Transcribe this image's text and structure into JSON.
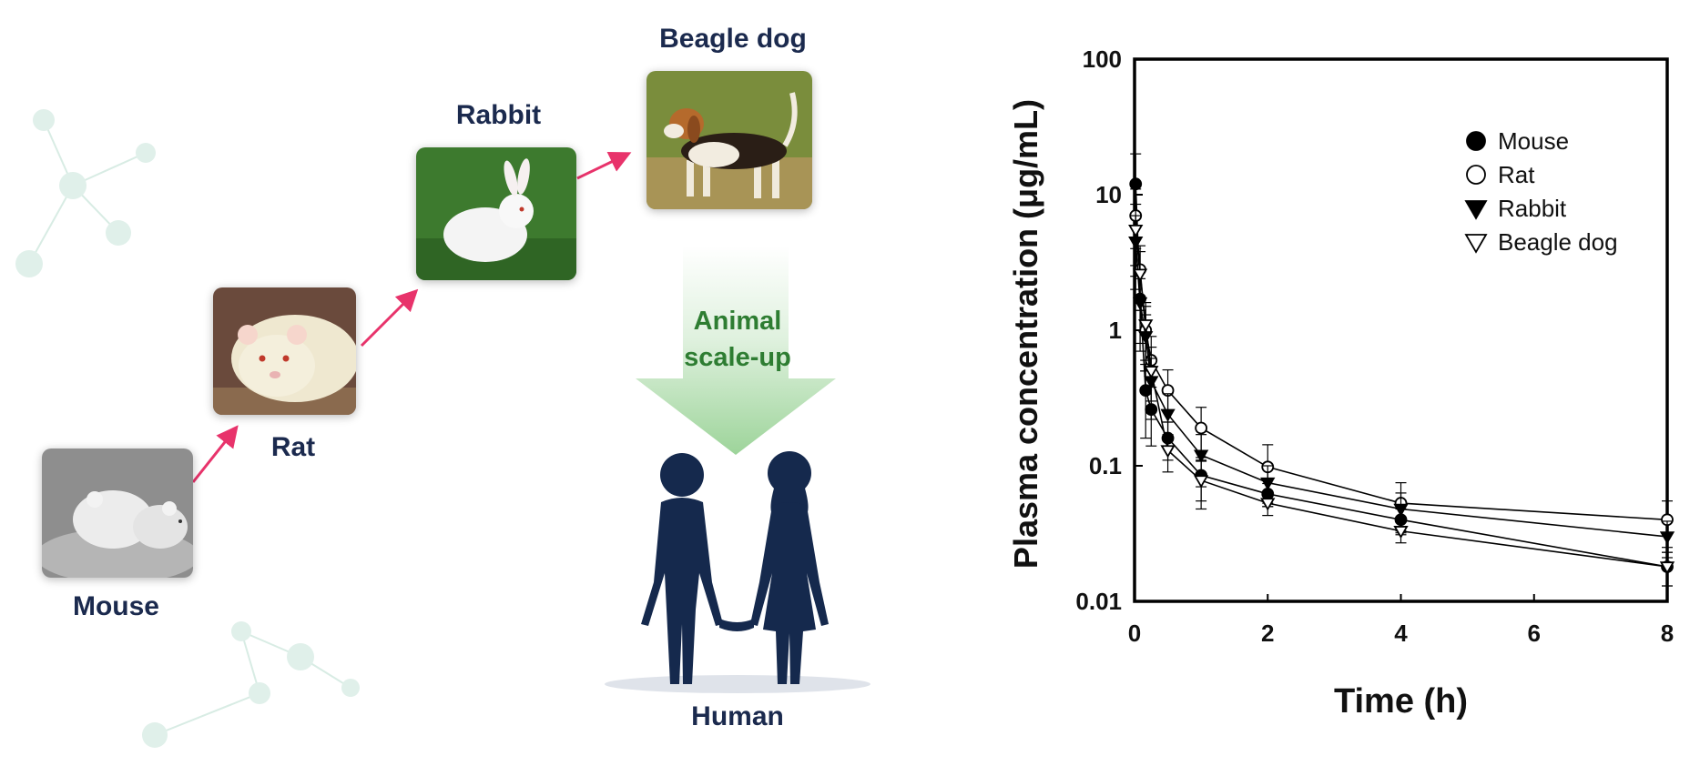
{
  "diagram": {
    "labels": {
      "mouse": "Mouse",
      "rat": "Rat",
      "rabbit": "Rabbit",
      "beagle": "Beagle dog",
      "scale_up_line1": "Animal",
      "scale_up_line2": "scale-up",
      "human": "Human"
    },
    "colors": {
      "label_navy": "#1b2a4e",
      "arrow_pink": "#e8336b",
      "scale_green": "#2e7d32",
      "human_navy": "#15294d"
    }
  },
  "chart_data": {
    "type": "line",
    "title": "",
    "xlabel": "Time (h)",
    "ylabel": "Plasma concentration (μg/mL)",
    "xlim": [
      0,
      8
    ],
    "ylim": [
      0.01,
      100
    ],
    "yscale": "log",
    "xticks": [
      0,
      2,
      4,
      6,
      8
    ],
    "yticks": [
      0.01,
      0.1,
      1,
      10,
      100
    ],
    "ytick_labels": [
      "0.01",
      "0.1",
      "1",
      "10",
      "100"
    ],
    "grid": false,
    "legend_position": "top-right",
    "series": [
      {
        "name": "Mouse",
        "marker": "filled-circle",
        "x": [
          0.0167,
          0.083,
          0.167,
          0.25,
          0.5,
          1,
          2,
          4,
          8
        ],
        "y": [
          12,
          1.7,
          0.36,
          0.26,
          0.16,
          0.085,
          0.062,
          0.04,
          0.018
        ],
        "err": [
          8,
          1.0,
          0.2,
          0.12,
          0.05,
          0.03,
          0.012,
          0.008,
          0.005
        ]
      },
      {
        "name": "Rat",
        "marker": "open-circle",
        "x": [
          0.0167,
          0.083,
          0.167,
          0.25,
          0.5,
          1,
          2,
          4,
          8
        ],
        "y": [
          7,
          2.8,
          1.0,
          0.6,
          0.36,
          0.19,
          0.098,
          0.053,
          0.04
        ],
        "err": [
          4,
          1.4,
          0.5,
          0.3,
          0.15,
          0.08,
          0.045,
          0.022,
          0.015
        ]
      },
      {
        "name": "Rabbit",
        "marker": "filled-triangle-down",
        "x": [
          0.0167,
          0.083,
          0.167,
          0.25,
          0.5,
          1,
          2,
          4,
          8
        ],
        "y": [
          4.5,
          1.6,
          0.9,
          0.42,
          0.24,
          0.12,
          0.075,
          0.048,
          0.03
        ],
        "err": [
          2.5,
          0.8,
          0.4,
          0.2,
          0.1,
          0.05,
          0.025,
          0.015,
          0.009
        ]
      },
      {
        "name": "Beagle dog",
        "marker": "open-triangle-down",
        "x": [
          0.0167,
          0.083,
          0.167,
          0.25,
          0.5,
          1,
          2,
          4,
          8
        ],
        "y": [
          5.5,
          2.6,
          1.1,
          0.5,
          0.13,
          0.078,
          0.053,
          0.033,
          0.018
        ],
        "err": [
          3,
          1.2,
          0.5,
          0.25,
          0.04,
          0.03,
          0.01,
          0.006,
          0.005
        ]
      }
    ]
  }
}
